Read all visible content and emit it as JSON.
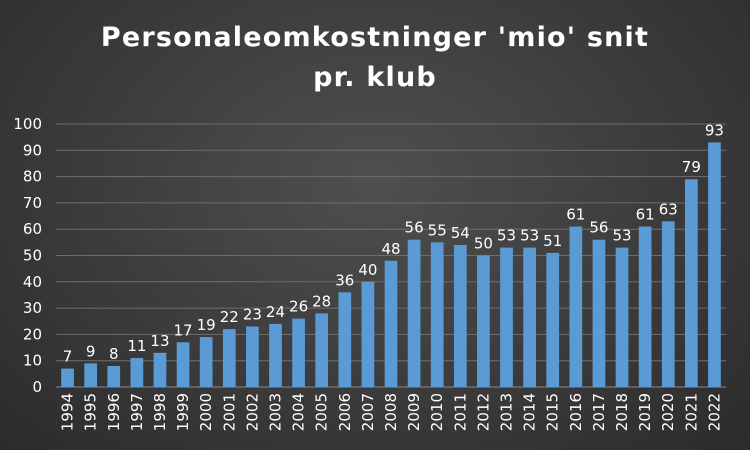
{
  "chart_data": {
    "type": "bar",
    "title": "Personaleomkostninger 'mio' snit pr. klub",
    "xlabel": "",
    "ylabel": "",
    "ylim": [
      0,
      100
    ],
    "yticks": [
      0,
      10,
      20,
      30,
      40,
      50,
      60,
      70,
      80,
      90,
      100
    ],
    "grid": true,
    "legend": "none",
    "categories": [
      "1994",
      "1995",
      "1996",
      "1997",
      "1998",
      "1999",
      "2000",
      "2001",
      "2002",
      "2003",
      "2004",
      "2005",
      "2006",
      "2007",
      "2008",
      "2009",
      "2010",
      "2011",
      "2012",
      "2013",
      "2014",
      "2015",
      "2016",
      "2017",
      "2018",
      "2019",
      "2020",
      "2021",
      "2022"
    ],
    "values": [
      7,
      9,
      8,
      11,
      13,
      17,
      19,
      22,
      23,
      24,
      26,
      28,
      36,
      40,
      48,
      56,
      55,
      54,
      50,
      53,
      53,
      51,
      61,
      56,
      53,
      61,
      63,
      79,
      93
    ],
    "bar_color": "#5b9bd5",
    "grid_color": "#6e6e6e"
  }
}
